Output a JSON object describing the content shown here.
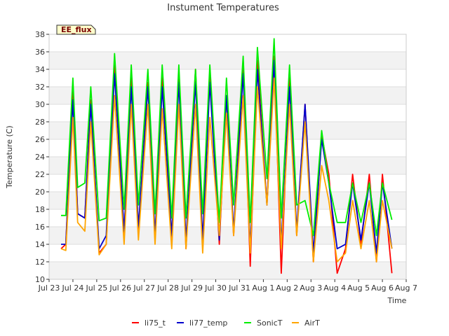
{
  "chart_data": {
    "type": "line",
    "title": "Instument Temperatures",
    "xlabel": "Time",
    "ylabel": "Temperature (C)",
    "site_label": "EE_flux",
    "xlim": [
      0,
      15
    ],
    "ylim": [
      10,
      38
    ],
    "x_ticks": [
      {
        "v": 0,
        "label": "Jul 23"
      },
      {
        "v": 1,
        "label": "Jul 24"
      },
      {
        "v": 2,
        "label": "Jul 25"
      },
      {
        "v": 3,
        "label": "Jul 26"
      },
      {
        "v": 4,
        "label": "Jul 27"
      },
      {
        "v": 5,
        "label": "Jul 28"
      },
      {
        "v": 6,
        "label": "Jul 29"
      },
      {
        "v": 7,
        "label": "Jul 30"
      },
      {
        "v": 8,
        "label": "Jul 31"
      },
      {
        "v": 9,
        "label": "Aug 1"
      },
      {
        "v": 10,
        "label": "Aug 2"
      },
      {
        "v": 11,
        "label": "Aug 3"
      },
      {
        "v": 12,
        "label": "Aug 4"
      },
      {
        "v": 13,
        "label": "Aug 5"
      },
      {
        "v": 14,
        "label": "Aug 6"
      },
      {
        "v": 15,
        "label": "Aug 7"
      }
    ],
    "y_ticks": [
      10,
      12,
      14,
      16,
      18,
      20,
      22,
      24,
      26,
      28,
      30,
      32,
      34,
      36,
      38
    ],
    "legend_position": "bottom",
    "series": [
      {
        "name": "li75_t",
        "color": "#ff0000",
        "x": [
          0.5,
          0.7,
          1.0,
          1.2,
          1.5,
          1.75,
          2.1,
          2.4,
          2.75,
          3.15,
          3.45,
          3.75,
          4.15,
          4.45,
          4.75,
          5.15,
          5.45,
          5.75,
          6.15,
          6.45,
          6.75,
          7.15,
          7.45,
          7.75,
          8.15,
          8.45,
          8.75,
          9.15,
          9.45,
          9.75,
          10.1,
          10.4,
          10.75,
          11.1,
          11.45,
          11.75,
          12.1,
          12.45,
          12.75,
          13.1,
          13.45,
          13.75,
          14.0,
          14.4
        ],
        "y": [
          13.5,
          14.0,
          31.5,
          17.5,
          17.0,
          30.5,
          13.0,
          14.0,
          35.0,
          15.0,
          33.0,
          15.5,
          32.5,
          14.5,
          33.0,
          14.5,
          33.5,
          13.5,
          34.0,
          14.0,
          33.5,
          14.0,
          31.0,
          15.0,
          35.0,
          11.5,
          35.0,
          18.5,
          35.5,
          10.7,
          33.0,
          15.0,
          30.0,
          12.0,
          26.5,
          22.0,
          10.7,
          13.5,
          22.0,
          14.0,
          22.0,
          12.0,
          22.0,
          10.7
        ]
      },
      {
        "name": "li77_temp",
        "color": "#0000cc",
        "x": [
          0.5,
          0.7,
          1.0,
          1.2,
          1.5,
          1.75,
          2.1,
          2.4,
          2.75,
          3.15,
          3.45,
          3.75,
          4.15,
          4.45,
          4.75,
          5.15,
          5.45,
          5.75,
          6.15,
          6.45,
          6.75,
          7.15,
          7.45,
          7.75,
          8.15,
          8.45,
          8.75,
          9.15,
          9.45,
          9.75,
          10.1,
          10.4,
          10.75,
          11.1,
          11.45,
          11.75,
          12.1,
          12.45,
          12.75,
          13.1,
          13.45,
          13.75,
          14.0,
          14.4
        ],
        "y": [
          14.0,
          14.0,
          30.5,
          17.5,
          17.0,
          30.0,
          13.5,
          15.0,
          33.5,
          15.5,
          32.0,
          16.0,
          32.0,
          15.0,
          32.0,
          15.0,
          32.5,
          14.5,
          32.5,
          14.5,
          32.5,
          14.5,
          31.0,
          15.5,
          33.5,
          13.5,
          34.0,
          18.5,
          35.0,
          14.0,
          32.0,
          15.5,
          30.0,
          13.0,
          26.0,
          21.0,
          13.5,
          14.0,
          21.0,
          14.5,
          21.0,
          13.0,
          21.0,
          13.5
        ]
      },
      {
        "name": "SonicT",
        "color": "#00ee00",
        "x": [
          0.5,
          0.7,
          1.0,
          1.2,
          1.5,
          1.75,
          2.1,
          2.4,
          2.75,
          3.15,
          3.45,
          3.75,
          4.15,
          4.45,
          4.75,
          5.15,
          5.45,
          5.75,
          6.15,
          6.45,
          6.75,
          7.15,
          7.45,
          7.75,
          8.15,
          8.45,
          8.75,
          9.15,
          9.45,
          9.75,
          10.1,
          10.4,
          10.75,
          11.1,
          11.45,
          11.75,
          12.1,
          12.45,
          12.75,
          13.1,
          13.45,
          13.75,
          14.0,
          14.4
        ],
        "y": [
          17.3,
          17.3,
          33.0,
          20.5,
          21.0,
          32.0,
          16.7,
          17.0,
          35.8,
          18.0,
          34.5,
          18.5,
          34.0,
          17.5,
          34.5,
          17.0,
          34.5,
          17.0,
          34.0,
          17.5,
          34.5,
          16.5,
          33.0,
          18.5,
          35.5,
          16.5,
          36.5,
          21.5,
          37.5,
          17.0,
          34.5,
          18.5,
          19.0,
          15.0,
          27.0,
          21.0,
          16.5,
          16.5,
          21.0,
          16.5,
          21.0,
          15.0,
          21.0,
          16.8
        ]
      },
      {
        "name": "AirT",
        "color": "#ffa500",
        "x": [
          0.5,
          0.7,
          1.0,
          1.2,
          1.5,
          1.75,
          2.1,
          2.4,
          2.75,
          3.15,
          3.45,
          3.75,
          4.15,
          4.45,
          4.75,
          5.15,
          5.45,
          5.75,
          6.15,
          6.45,
          6.75,
          7.15,
          7.45,
          7.75,
          8.15,
          8.45,
          8.75,
          9.15,
          9.45,
          9.75,
          10.1,
          10.4,
          10.75,
          11.1,
          11.45,
          11.75,
          12.1,
          12.45,
          12.75,
          13.1,
          13.45,
          13.75,
          14.0,
          14.4
        ],
        "y": [
          13.5,
          13.3,
          28.5,
          16.5,
          15.5,
          28.0,
          12.8,
          14.0,
          31.0,
          14.0,
          30.0,
          14.5,
          30.0,
          14.0,
          29.5,
          13.5,
          30.0,
          13.5,
          30.0,
          13.0,
          28.5,
          15.0,
          29.0,
          15.0,
          31.0,
          13.0,
          32.0,
          18.5,
          33.0,
          13.5,
          30.0,
          15.0,
          28.0,
          12.0,
          23.0,
          19.0,
          12.0,
          13.0,
          19.0,
          13.5,
          19.0,
          12.0,
          19.0,
          13.5
        ]
      }
    ]
  }
}
